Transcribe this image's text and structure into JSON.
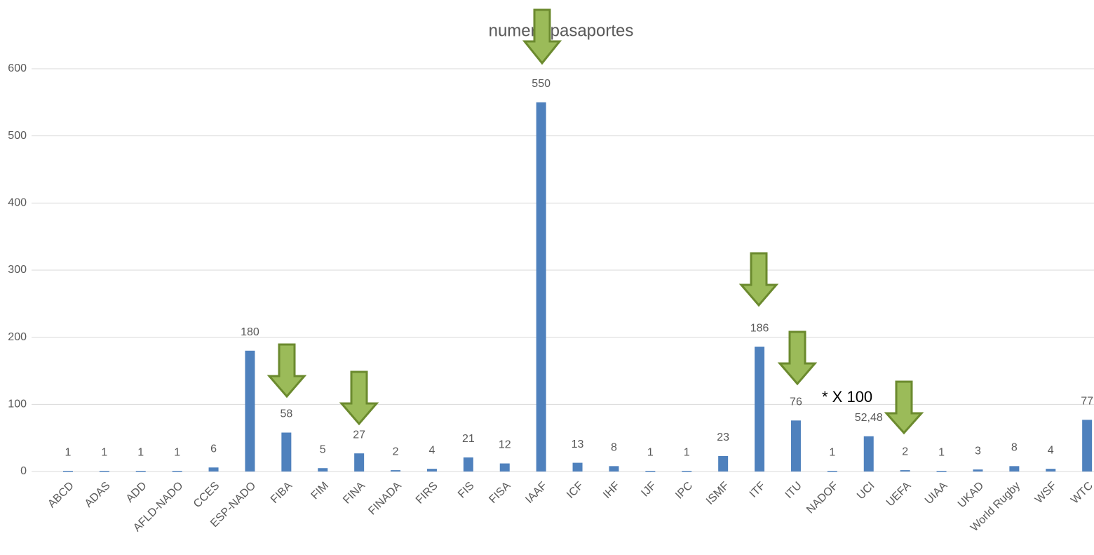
{
  "chart_data": {
    "type": "bar",
    "title": "numero pasaportes",
    "categories": [
      "ABCD",
      "ADAS",
      "ADD",
      "AFLD-NADO",
      "CCES",
      "ESP-NADO",
      "FIBA",
      "FIM",
      "FINA",
      "FINADA",
      "FIRS",
      "FIS",
      "FISA",
      "IAAF",
      "ICF",
      "IHF",
      "IJF",
      "IPC",
      "ISMF",
      "ITF",
      "ITU",
      "NADOF",
      "UCI",
      "UEFA",
      "UIAA",
      "UKAD",
      "World Rugby",
      "WSF",
      "WTC"
    ],
    "values": [
      1,
      1,
      1,
      1,
      6,
      180,
      58,
      5,
      27,
      2,
      4,
      21,
      12,
      550,
      13,
      8,
      1,
      1,
      23,
      186,
      76,
      1,
      52.48,
      2,
      1,
      3,
      8,
      4,
      77
    ],
    "value_labels": [
      "1",
      "1",
      "1",
      "1",
      "6",
      "180",
      "58",
      "5",
      "27",
      "2",
      "4",
      "21",
      "12",
      "550",
      "13",
      "8",
      "1",
      "1",
      "23",
      "186",
      "76",
      "1",
      "52,48",
      "2",
      "1",
      "3",
      "8",
      "4",
      "77"
    ],
    "color": "#4f81bd",
    "ylim": [
      0,
      600
    ],
    "yticks": [
      0,
      100,
      200,
      300,
      400,
      500,
      600
    ],
    "grid": true,
    "annotation": "* X 100"
  }
}
